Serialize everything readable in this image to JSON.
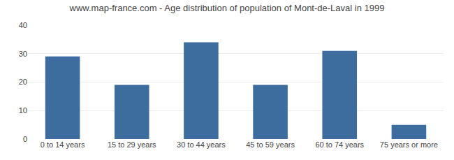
{
  "chart_data": {
    "type": "bar",
    "title": "www.map-france.com - Age distribution of population of Mont-de-Laval in 1999",
    "categories": [
      "0 to 14 years",
      "15 to 29 years",
      "30 to 44 years",
      "45 to 59 years",
      "60 to 74 years",
      "75 years or more"
    ],
    "values": [
      29,
      19,
      34,
      19,
      31,
      5
    ],
    "color": "#3d6d9e",
    "ylim": [
      0,
      40
    ],
    "yticks": [
      0,
      10,
      20,
      30,
      40
    ],
    "grid": true
  }
}
